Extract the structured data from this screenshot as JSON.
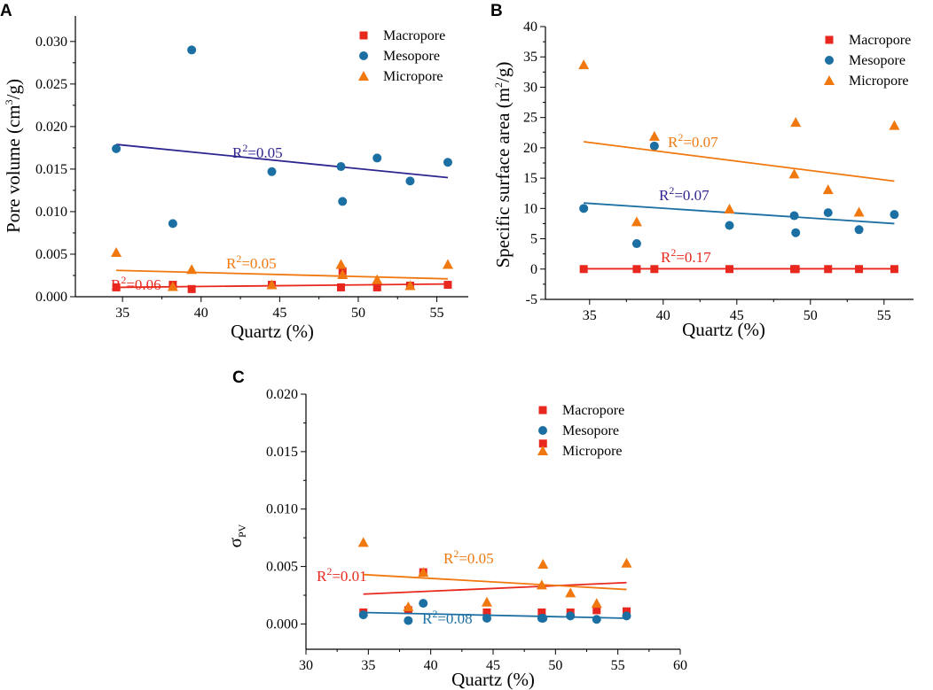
{
  "colors": {
    "macro": "#e8281e",
    "meso": "#1b6fa3",
    "micro": "#f0780f",
    "meso_line_a": "#2e2590",
    "axis": "#000000"
  },
  "chart_data": [
    {
      "panel": "A",
      "type": "scatter",
      "xlabel": "Quartz (%)",
      "ylabel": "Pore volume (cm³/g)",
      "ylabel_parts": [
        "Pore volume (cm",
        "3",
        "/g)"
      ],
      "xlim": [
        32,
        57
      ],
      "ylim": [
        0,
        0.033
      ],
      "xticks": [
        35,
        40,
        45,
        50,
        55
      ],
      "yticks": [
        0.0,
        0.005,
        0.01,
        0.015,
        0.02,
        0.025,
        0.03
      ],
      "ytick_labels": [
        "0.000",
        "0.005",
        "0.010",
        "0.015",
        "0.020",
        "0.025",
        "0.030"
      ],
      "legend": [
        "Macropore",
        "Mesopore",
        "Micropore"
      ],
      "legend_position": "top-right",
      "series": [
        {
          "name": "Macropore",
          "marker": "square",
          "x": [
            34.6,
            38.2,
            39.4,
            44.5,
            48.9,
            49.0,
            51.2,
            53.3,
            55.7
          ],
          "y": [
            0.0011,
            0.0014,
            0.0009,
            0.0014,
            0.0011,
            0.003,
            0.0011,
            0.0013,
            0.0014
          ],
          "trend": [
            [
              34.6,
              0.0011
            ],
            [
              55.7,
              0.0015
            ]
          ],
          "r2": "0.06"
        },
        {
          "name": "Mesopore",
          "marker": "circle",
          "x": [
            34.6,
            38.2,
            39.4,
            44.5,
            48.9,
            49.0,
            51.2,
            53.3,
            55.7
          ],
          "y": [
            0.0174,
            0.0086,
            0.029,
            0.0147,
            0.0153,
            0.0112,
            0.0163,
            0.0136,
            0.0158
          ],
          "trend": [
            [
              34.6,
              0.0179
            ],
            [
              55.7,
              0.014
            ]
          ],
          "r2": "0.05"
        },
        {
          "name": "Micropore",
          "marker": "triangle",
          "x": [
            34.6,
            38.2,
            39.4,
            44.5,
            48.9,
            49.0,
            51.2,
            53.3,
            55.7
          ],
          "y": [
            0.0052,
            0.0012,
            0.0032,
            0.0014,
            0.0038,
            0.0026,
            0.002,
            0.0013,
            0.0038
          ],
          "trend": [
            [
              34.6,
              0.0031
            ],
            [
              55.7,
              0.0021
            ]
          ],
          "r2": "0.05"
        }
      ]
    },
    {
      "panel": "B",
      "type": "scatter",
      "xlabel": "Quartz (%)",
      "ylabel": "Specific surface area (m²/g)",
      "ylabel_parts": [
        "Specific surface area (m",
        "2",
        "/g)"
      ],
      "xlim": [
        32,
        57
      ],
      "ylim": [
        -5,
        40
      ],
      "xticks": [
        35,
        40,
        45,
        50,
        55
      ],
      "yticks": [
        -5,
        0,
        5,
        10,
        15,
        20,
        25,
        30,
        35,
        40
      ],
      "ytick_labels": [
        "-5",
        "0",
        "5",
        "10",
        "15",
        "20",
        "25",
        "30",
        "35",
        "40"
      ],
      "legend": [
        "Macropore",
        "Mesopore",
        "Micropore"
      ],
      "legend_position": "top-right",
      "series": [
        {
          "name": "Macropore",
          "marker": "square",
          "x": [
            34.6,
            38.2,
            39.4,
            44.5,
            48.9,
            49.0,
            51.2,
            53.3,
            55.7
          ],
          "y": [
            0,
            0,
            0,
            0,
            0,
            0,
            0,
            0,
            0
          ],
          "trend": [
            [
              34.6,
              0.05
            ],
            [
              55.7,
              0.05
            ]
          ],
          "r2": "0.17"
        },
        {
          "name": "Mesopore",
          "marker": "circle",
          "x": [
            34.6,
            38.2,
            39.4,
            44.5,
            48.9,
            49.0,
            51.2,
            53.3,
            55.7
          ],
          "y": [
            10.0,
            4.2,
            20.3,
            7.2,
            8.8,
            6.0,
            9.3,
            6.5,
            9.0
          ],
          "trend": [
            [
              34.6,
              10.9
            ],
            [
              55.7,
              7.5
            ]
          ],
          "r2": "0.07"
        },
        {
          "name": "Micropore",
          "marker": "triangle",
          "x": [
            34.6,
            38.2,
            39.4,
            44.5,
            48.9,
            49.0,
            51.2,
            53.3,
            55.7
          ],
          "y": [
            33.7,
            7.8,
            21.9,
            9.9,
            15.7,
            24.2,
            13.1,
            9.4,
            23.7
          ],
          "trend": [
            [
              34.6,
              21.0
            ],
            [
              55.7,
              14.5
            ]
          ],
          "r2": "0.07"
        }
      ]
    },
    {
      "panel": "C",
      "type": "scatter",
      "xlabel": "Quartz (%)",
      "ylabel": "σPV",
      "ylabel_parts": [
        "σ",
        "PV"
      ],
      "xlim": [
        30,
        60
      ],
      "ylim": [
        -0.0022,
        0.02
      ],
      "xticks": [
        30,
        35,
        40,
        45,
        50,
        55,
        60
      ],
      "yticks": [
        0.0,
        0.005,
        0.01,
        0.015,
        0.02
      ],
      "ytick_labels": [
        "0.000",
        "0.005",
        "0.010",
        "0.015",
        "0.020"
      ],
      "legend": [
        "Macropore",
        "Mesopore",
        "Micropore"
      ],
      "legend_position": "top-right",
      "series": [
        {
          "name": "Macropore",
          "marker": "square",
          "x": [
            34.6,
            38.2,
            39.4,
            44.5,
            48.9,
            49.0,
            51.2,
            53.3,
            55.7
          ],
          "y": [
            0.001,
            0.0012,
            0.0045,
            0.001,
            0.001,
            0.0157,
            0.001,
            0.0012,
            0.0011
          ],
          "trend": [
            [
              34.6,
              0.0026
            ],
            [
              55.7,
              0.0036
            ]
          ],
          "r2": "0.01"
        },
        {
          "name": "Mesopore",
          "marker": "circle",
          "x": [
            34.6,
            38.2,
            39.4,
            44.5,
            48.9,
            49.0,
            51.2,
            53.3,
            55.7
          ],
          "y": [
            0.0008,
            0.0003,
            0.0018,
            0.0005,
            0.0005,
            0.0005,
            0.0007,
            0.0004,
            0.0007
          ],
          "trend": [
            [
              34.6,
              0.001
            ],
            [
              55.7,
              0.0005
            ]
          ],
          "r2": "0.08"
        },
        {
          "name": "Micropore",
          "marker": "triangle",
          "x": [
            34.6,
            38.2,
            39.4,
            44.5,
            48.9,
            49.0,
            51.2,
            53.3,
            55.7
          ],
          "y": [
            0.0071,
            0.0015,
            0.0045,
            0.0019,
            0.0034,
            0.0052,
            0.0027,
            0.0018,
            0.0053
          ],
          "trend": [
            [
              34.6,
              0.0043
            ],
            [
              55.7,
              0.003
            ]
          ],
          "r2": "0.05"
        }
      ]
    }
  ]
}
